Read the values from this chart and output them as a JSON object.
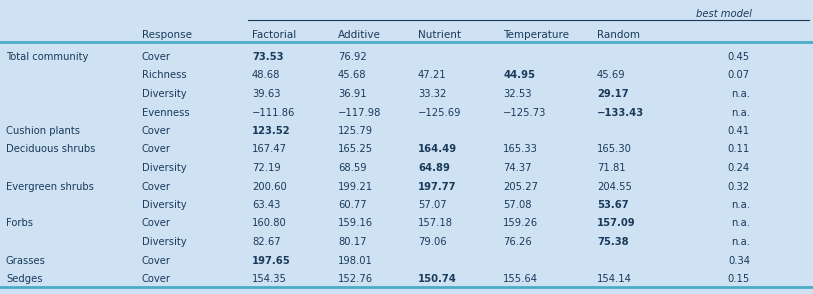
{
  "rows": [
    {
      "group": "Total community",
      "response": "Cover",
      "factorial": "73.53",
      "additive": "76.92",
      "nutrient": "",
      "temperature": "",
      "random": "",
      "r2": "0.45",
      "bold_col": "factorial"
    },
    {
      "group": "",
      "response": "Richness",
      "factorial": "48.68",
      "additive": "45.68",
      "nutrient": "47.21",
      "temperature": "44.95",
      "random": "45.69",
      "r2": "0.07",
      "bold_col": "temperature"
    },
    {
      "group": "",
      "response": "Diversity",
      "factorial": "39.63",
      "additive": "36.91",
      "nutrient": "33.32",
      "temperature": "32.53",
      "random": "29.17",
      "r2": "n.a.",
      "bold_col": "random"
    },
    {
      "group": "",
      "response": "Evenness",
      "factorial": "−111.86",
      "additive": "−117.98",
      "nutrient": "−125.69",
      "temperature": "−125.73",
      "random": "−133.43",
      "r2": "n.a.",
      "bold_col": "random"
    },
    {
      "group": "Cushion plants",
      "response": "Cover",
      "factorial": "123.52",
      "additive": "125.79",
      "nutrient": "",
      "temperature": "",
      "random": "",
      "r2": "0.41",
      "bold_col": "factorial"
    },
    {
      "group": "Deciduous shrubs",
      "response": "Cover",
      "factorial": "167.47",
      "additive": "165.25",
      "nutrient": "164.49",
      "temperature": "165.33",
      "random": "165.30",
      "r2": "0.11",
      "bold_col": "nutrient"
    },
    {
      "group": "",
      "response": "Diversity",
      "factorial": "72.19",
      "additive": "68.59",
      "nutrient": "64.89",
      "temperature": "74.37",
      "random": "71.81",
      "r2": "0.24",
      "bold_col": "nutrient"
    },
    {
      "group": "Evergreen shrubs",
      "response": "Cover",
      "factorial": "200.60",
      "additive": "199.21",
      "nutrient": "197.77",
      "temperature": "205.27",
      "random": "204.55",
      "r2": "0.32",
      "bold_col": "nutrient"
    },
    {
      "group": "",
      "response": "Diversity",
      "factorial": "63.43",
      "additive": "60.77",
      "nutrient": "57.07",
      "temperature": "57.08",
      "random": "53.67",
      "r2": "n.a.",
      "bold_col": "random"
    },
    {
      "group": "Forbs",
      "response": "Cover",
      "factorial": "160.80",
      "additive": "159.16",
      "nutrient": "157.18",
      "temperature": "159.26",
      "random": "157.09",
      "r2": "n.a.",
      "bold_col": "random"
    },
    {
      "group": "",
      "response": "Diversity",
      "factorial": "82.67",
      "additive": "80.17",
      "nutrient": "79.06",
      "temperature": "76.26",
      "random": "75.38",
      "r2": "n.a.",
      "bold_col": "random"
    },
    {
      "group": "Grasses",
      "response": "Cover",
      "factorial": "197.65",
      "additive": "198.01",
      "nutrient": "",
      "temperature": "",
      "random": "",
      "r2": "0.34",
      "bold_col": "factorial"
    },
    {
      "group": "Sedges",
      "response": "Cover",
      "factorial": "154.35",
      "additive": "152.76",
      "nutrient": "150.74",
      "temperature": "155.64",
      "random": "154.14",
      "r2": "0.15",
      "bold_col": "nutrient"
    }
  ],
  "background_color": "#cfe2f3",
  "header_line_color": "#4bacc6",
  "text_color": "#1a3a5c",
  "font_size": 7.2,
  "header_font_size": 7.5
}
